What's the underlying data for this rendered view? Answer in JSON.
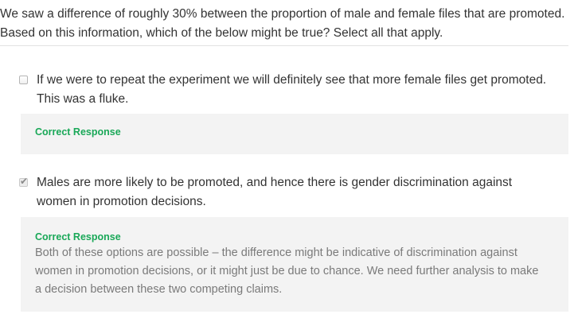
{
  "question": {
    "text": "We saw a difference of roughly 30% between the proportion of male and female files that are promoted. Based on this information, which of the below might be true? Select all that apply."
  },
  "options": [
    {
      "text": "If we were to repeat the experiment we will definitely see that more female files get promoted. This was a fluke.",
      "checked": false,
      "feedback_title": "Correct Response",
      "feedback_body": ""
    },
    {
      "text": "Males are more likely to be promoted, and hence there is gender discrimination against women in promotion decisions.",
      "checked": true,
      "checkmark": "✔",
      "feedback_title": "Correct Response",
      "feedback_body": "Both of these options are possible – the difference might be indicative of discrimination against women in promotion decisions, or it might just be due to chance. We need further analysis to make a decision between these two competing claims."
    }
  ],
  "colors": {
    "correct": "#1aa858",
    "feedback_bg": "#f3f3f3"
  }
}
